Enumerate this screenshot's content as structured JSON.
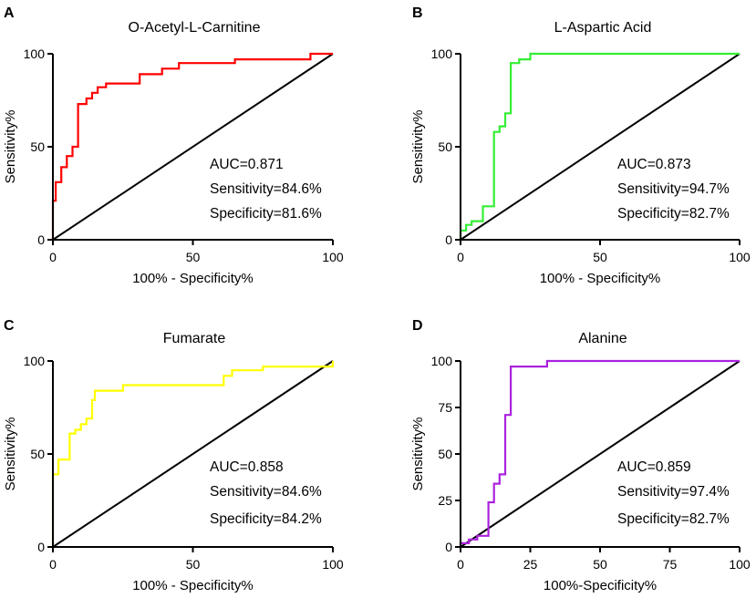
{
  "chart_data": [
    {
      "type": "line",
      "panel": "A",
      "title": "O-Acetyl-L-Carnitine",
      "xlabel": "100% - Specificity%",
      "ylabel": "Sensitivity%",
      "xlim": [
        0,
        100
      ],
      "ylim": [
        0,
        100
      ],
      "x_ticks": [
        "0",
        "50",
        "100"
      ],
      "y_ticks": [
        "0",
        "50",
        "100"
      ],
      "color": "#ff0000",
      "annotations": [
        "AUC=0.871",
        "Sensitivity=84.6%",
        "Specificity=81.6%"
      ],
      "series": [
        {
          "name": "ROC",
          "x": [
            0,
            0,
            1,
            1,
            3,
            3,
            5,
            5,
            7,
            7,
            9,
            9,
            12,
            12,
            14,
            14,
            16,
            16,
            19,
            19,
            31,
            31,
            39,
            39,
            45,
            45,
            65,
            65,
            92,
            92,
            100
          ],
          "y": [
            0,
            21,
            21,
            31,
            31,
            39,
            39,
            45,
            45,
            50,
            50,
            73,
            73,
            76,
            76,
            79,
            79,
            82,
            82,
            84,
            84,
            89,
            89,
            92,
            92,
            95,
            95,
            97,
            97,
            100,
            100
          ]
        },
        {
          "name": "Reference",
          "x": [
            0,
            100
          ],
          "y": [
            0,
            100
          ]
        }
      ]
    },
    {
      "type": "line",
      "panel": "B",
      "title": "L-Aspartic Acid",
      "xlabel": "100% - Specificity%",
      "ylabel": "Sensitivity%",
      "xlim": [
        0,
        100
      ],
      "ylim": [
        0,
        100
      ],
      "x_ticks": [
        "0",
        "50",
        "100"
      ],
      "y_ticks": [
        "0",
        "50",
        "100"
      ],
      "color": "#33ee33",
      "annotations": [
        "AUC=0.873",
        "Sensitivity=94.7%",
        "Specificity=82.7%"
      ],
      "series": [
        {
          "name": "ROC",
          "x": [
            0,
            0,
            2,
            2,
            4,
            4,
            8,
            8,
            12,
            12,
            14,
            14,
            16,
            16,
            18,
            18,
            21,
            21,
            25,
            25,
            100
          ],
          "y": [
            0,
            5,
            5,
            8,
            8,
            10,
            10,
            18,
            18,
            58,
            58,
            61,
            61,
            68,
            68,
            95,
            95,
            97,
            97,
            100,
            100
          ]
        },
        {
          "name": "Reference",
          "x": [
            0,
            100
          ],
          "y": [
            0,
            100
          ]
        }
      ]
    },
    {
      "type": "line",
      "panel": "C",
      "title": "Fumarate",
      "xlabel": "100% - Specificity%",
      "ylabel": "Sensitivity%",
      "xlim": [
        0,
        100
      ],
      "ylim": [
        0,
        100
      ],
      "x_ticks": [
        "0",
        "50",
        "100"
      ],
      "y_ticks": [
        "0",
        "50",
        "100"
      ],
      "color": "#ffff00",
      "annotations": [
        "AUC=0.858",
        "Sensitivity=84.6%",
        "Specificity=84.2%"
      ],
      "series": [
        {
          "name": "ROC",
          "x": [
            0,
            0,
            2,
            2,
            6,
            6,
            8,
            8,
            10,
            10,
            12,
            12,
            14,
            14,
            15,
            15,
            25,
            25,
            61,
            61,
            64,
            64,
            75,
            75,
            100,
            100
          ],
          "y": [
            0,
            39,
            39,
            47,
            47,
            61,
            61,
            63,
            63,
            66,
            66,
            69,
            69,
            79,
            79,
            84,
            84,
            87,
            87,
            92,
            92,
            95,
            95,
            97,
            97,
            100
          ]
        },
        {
          "name": "Reference",
          "x": [
            0,
            100
          ],
          "y": [
            0,
            100
          ]
        }
      ]
    },
    {
      "type": "line",
      "panel": "D",
      "title": "Alanine",
      "xlabel": "100%-Specificity%",
      "ylabel": "Sensitivity%",
      "xlim": [
        0,
        100
      ],
      "ylim": [
        0,
        100
      ],
      "x_ticks": [
        "0",
        "25",
        "50",
        "75",
        "100"
      ],
      "y_ticks": [
        "0",
        "25",
        "50",
        "75",
        "100"
      ],
      "color": "#aa22dd",
      "annotations": [
        "AUC=0.859",
        "Sensitivity=97.4%",
        "Specificity=82.7%"
      ],
      "series": [
        {
          "name": "ROC",
          "x": [
            0,
            0,
            3,
            3,
            6,
            6,
            10,
            10,
            12,
            12,
            14,
            14,
            16,
            16,
            18,
            18,
            31,
            31,
            100
          ],
          "y": [
            0,
            2,
            2,
            4,
            4,
            6,
            6,
            24,
            24,
            34,
            34,
            39,
            39,
            71,
            71,
            97,
            97,
            100,
            100
          ]
        },
        {
          "name": "Reference",
          "x": [
            0,
            100
          ],
          "y": [
            0,
            100
          ]
        }
      ]
    }
  ]
}
